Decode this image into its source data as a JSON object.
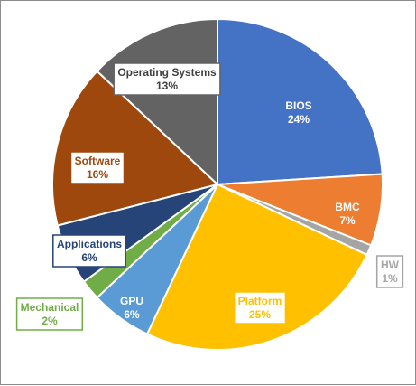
{
  "chart_data": {
    "type": "pie",
    "title": "",
    "slices": [
      {
        "label": "BIOS",
        "value": 24,
        "value_label": "24%",
        "color": "#4472c4",
        "text_color": "#ffffff",
        "box": false
      },
      {
        "label": "BMC",
        "value": 7,
        "value_label": "7%",
        "color": "#ed7d31",
        "text_color": "#ffffff",
        "box": false
      },
      {
        "label": "HW",
        "value": 1,
        "value_label": "1%",
        "color": "#a5a5a5",
        "text_color": "#a5a5a5",
        "box": true
      },
      {
        "label": "Platform",
        "value": 25,
        "value_label": "25%",
        "color": "#ffc000",
        "text_color": "#ffc000",
        "box": true
      },
      {
        "label": "GPU",
        "value": 6,
        "value_label": "6%",
        "color": "#5b9bd5",
        "text_color": "#ffffff",
        "box": false
      },
      {
        "label": "Mechanical",
        "value": 2,
        "value_label": "2%",
        "color": "#70ad47",
        "text_color": "#70ad47",
        "box": true
      },
      {
        "label": "Applications",
        "value": 6,
        "value_label": "6%",
        "color": "#264478",
        "text_color": "#264478",
        "box": true
      },
      {
        "label": "Software",
        "value": 16,
        "value_label": "16%",
        "color": "#9e480e",
        "text_color": "#9e480e",
        "box": true
      },
      {
        "label": "Operating Systems",
        "value": 13,
        "value_label": "13%",
        "color": "#636363",
        "text_color": "#404040",
        "box": true
      }
    ],
    "start_angle_deg": 0,
    "direction": "clockwise",
    "legend": "none"
  }
}
